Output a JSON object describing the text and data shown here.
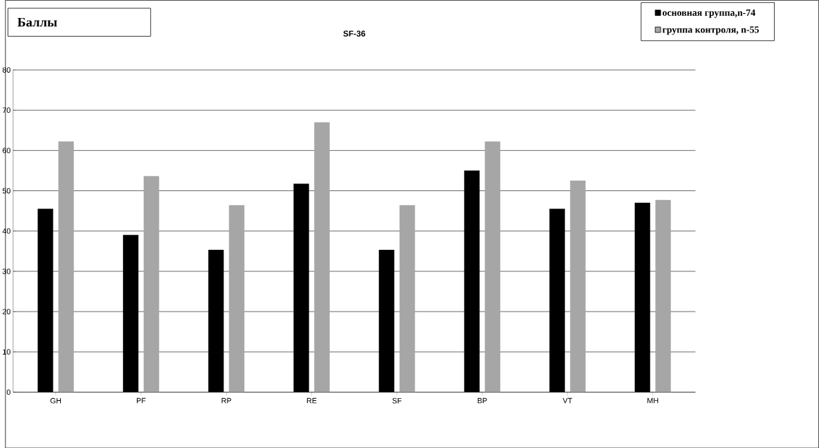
{
  "chart_data": {
    "type": "bar",
    "title": "SF-36",
    "ylabel": "Баллы",
    "categories": [
      "GH",
      "PF",
      "RP",
      "RE",
      "SF",
      "BP",
      "VT",
      "MH"
    ],
    "series": [
      {
        "name": "основная группа,n-74",
        "color": "#000000",
        "values": [
          45.5,
          39,
          35.3,
          51.7,
          35.3,
          55,
          45.5,
          47
        ]
      },
      {
        "name": "группа контроля, n-55",
        "color": "#a6a6a6",
        "values": [
          62.2,
          53.6,
          46.4,
          67,
          46.4,
          62.2,
          52.5,
          47.7
        ]
      }
    ],
    "ylim": [
      0,
      80
    ],
    "yticks": [
      0,
      10,
      20,
      30,
      40,
      50,
      60,
      70,
      80
    ],
    "grid": "y",
    "legend": "top right"
  }
}
